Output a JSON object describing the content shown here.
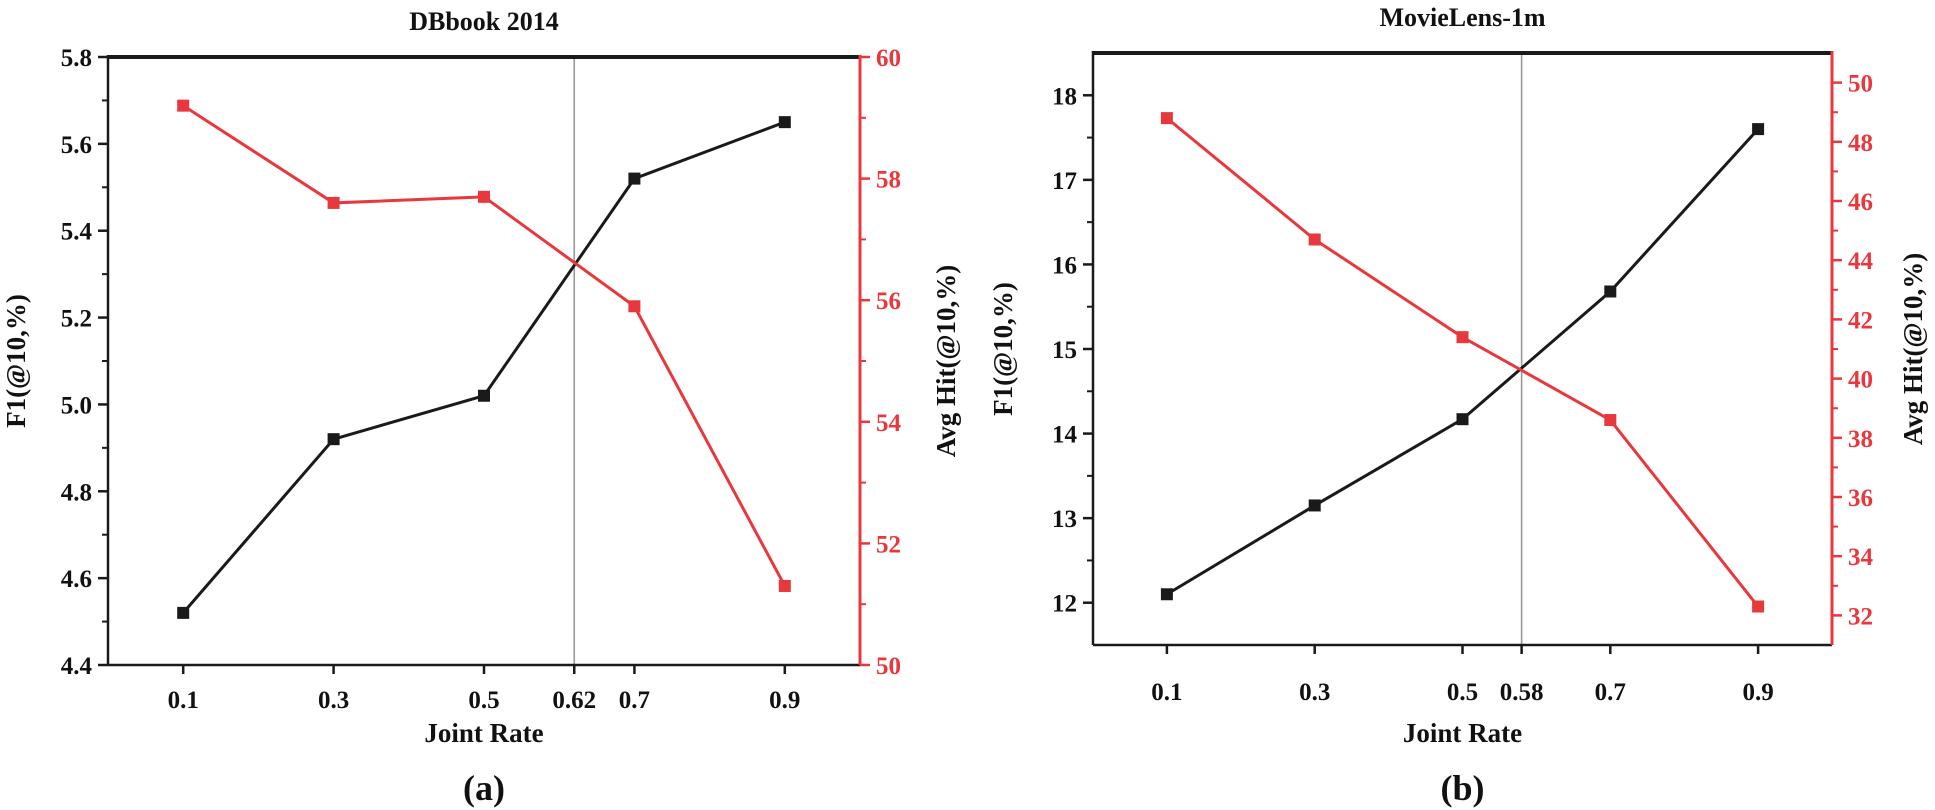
{
  "colors": {
    "left_series": "#1a1a1a",
    "right_series": "#e8383d",
    "ref_line": "#9a9a9a",
    "frame": "#1a1a1a"
  },
  "chart_data": [
    {
      "type": "line",
      "panel_label": "(a)",
      "title": "DBbook 2014",
      "xlabel": "Joint Rate",
      "ylabel_left": "F1(@10,%)",
      "ylabel_right": "Avg Hit(@10,%)",
      "xlim": [
        0,
        1.0
      ],
      "ylim_left": [
        4.4,
        5.8
      ],
      "ylim_right": [
        50,
        60
      ],
      "x_ticks": [
        0.1,
        0.3,
        0.5,
        0.62,
        0.7,
        0.9
      ],
      "x_tick_labels": [
        "0.1",
        "0.3",
        "0.5",
        "0.62",
        "0.7",
        "0.9"
      ],
      "y_left_ticks": [
        4.4,
        4.6,
        4.8,
        5.0,
        5.2,
        5.4,
        5.6,
        5.8
      ],
      "y_left_tick_labels": [
        "4.4",
        "4.6",
        "4.8",
        "5.0",
        "5.2",
        "5.4",
        "5.6",
        "5.8"
      ],
      "y_right_ticks": [
        50,
        52,
        54,
        56,
        58,
        60
      ],
      "y_right_tick_labels": [
        "50",
        "52",
        "54",
        "56",
        "58",
        "60"
      ],
      "ref_line_x": 0.62,
      "series": [
        {
          "name": "F1",
          "axis": "left",
          "x": [
            0.1,
            0.3,
            0.5,
            0.7,
            0.9
          ],
          "values": [
            4.52,
            4.92,
            5.02,
            5.52,
            5.65
          ]
        },
        {
          "name": "Avg Hit",
          "axis": "right",
          "x": [
            0.1,
            0.3,
            0.5,
            0.7,
            0.9
          ],
          "values": [
            59.2,
            57.6,
            57.7,
            55.9,
            51.3
          ]
        }
      ]
    },
    {
      "type": "line",
      "panel_label": "(b)",
      "title": "MovieLens-1m",
      "xlabel": "Joint Rate",
      "ylabel_left": "F1(@10,%)",
      "ylabel_right": "Avg Hit(@10,%)",
      "xlim": [
        0,
        1.0
      ],
      "ylim_left": [
        11.5,
        18.5
      ],
      "ylim_right": [
        31,
        51
      ],
      "x_ticks": [
        0.1,
        0.3,
        0.5,
        0.58,
        0.7,
        0.9
      ],
      "x_tick_labels": [
        "0.1",
        "0.3",
        "0.5",
        "0.58",
        "0.7",
        "0.9"
      ],
      "y_left_ticks": [
        12,
        13,
        14,
        15,
        16,
        17,
        18
      ],
      "y_left_tick_labels": [
        "12",
        "13",
        "14",
        "15",
        "16",
        "17",
        "18"
      ],
      "y_right_ticks": [
        32,
        34,
        36,
        38,
        40,
        42,
        44,
        46,
        48,
        50
      ],
      "y_right_tick_labels": [
        "32",
        "34",
        "36",
        "38",
        "40",
        "42",
        "44",
        "46",
        "48",
        "50"
      ],
      "ref_line_x": 0.58,
      "series": [
        {
          "name": "F1",
          "axis": "left",
          "x": [
            0.1,
            0.3,
            0.5,
            0.7,
            0.9
          ],
          "values": [
            12.1,
            13.15,
            14.17,
            15.68,
            17.6
          ]
        },
        {
          "name": "Avg Hit",
          "axis": "right",
          "x": [
            0.1,
            0.3,
            0.5,
            0.7,
            0.9
          ],
          "values": [
            48.8,
            44.7,
            41.4,
            38.6,
            32.3
          ]
        }
      ]
    }
  ]
}
